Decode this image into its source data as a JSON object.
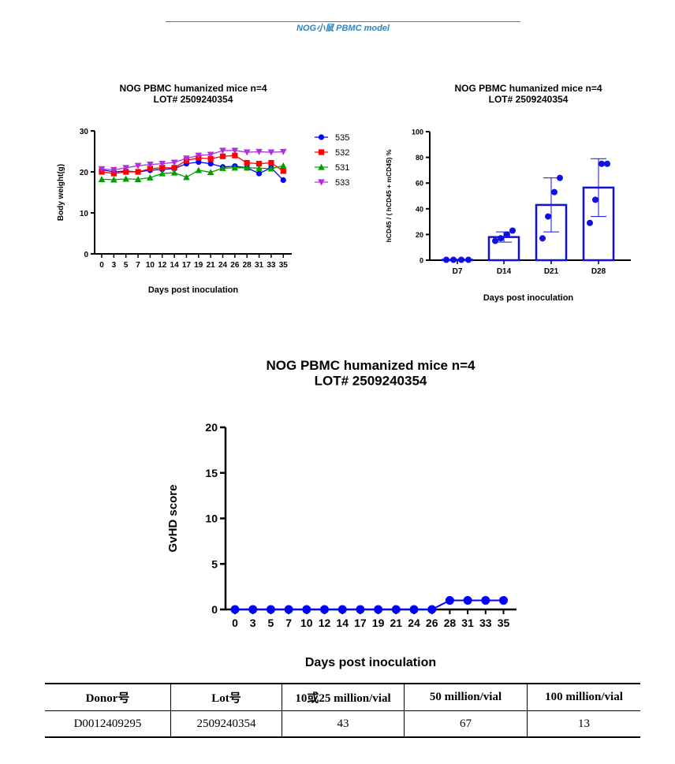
{
  "header": {
    "title": "NOG小鼠  PBMC model"
  },
  "chart_data": [
    {
      "type": "line",
      "title": "NOG PBMC humanized mice n=4",
      "subtitle": "LOT# 2509240354",
      "xlabel": "Days post inoculation",
      "ylabel": "Body weight(g)",
      "ylim": [
        0,
        30
      ],
      "yticks": [
        "0",
        "10",
        "20",
        "30"
      ],
      "categories": [
        "0",
        "3",
        "5",
        "7",
        "10",
        "12",
        "14",
        "17",
        "19",
        "21",
        "24",
        "26",
        "28",
        "31",
        "33",
        "35"
      ],
      "legend_position": "right",
      "series": [
        {
          "name": "535",
          "color": "#0000ff",
          "marker": "circle",
          "values": [
            20.5,
            20.0,
            20.2,
            20.0,
            20.4,
            20.6,
            20.8,
            22.0,
            22.4,
            22.0,
            21.2,
            21.4,
            21.0,
            19.6,
            21.0,
            18.0
          ]
        },
        {
          "name": "532",
          "color": "#ff0000",
          "marker": "square",
          "values": [
            20.0,
            19.6,
            20.0,
            20.0,
            20.8,
            21.0,
            21.0,
            22.8,
            23.4,
            23.2,
            23.8,
            24.0,
            22.2,
            22.0,
            22.2,
            20.2
          ]
        },
        {
          "name": "531",
          "color": "#00a000",
          "marker": "triangle-up",
          "values": [
            18.2,
            18.1,
            18.3,
            18.2,
            18.6,
            19.6,
            19.8,
            18.7,
            20.4,
            19.9,
            20.9,
            21.0,
            21.0,
            20.9,
            20.8,
            21.5
          ]
        },
        {
          "name": "533",
          "color": "#b030e0",
          "marker": "triangle-down",
          "values": [
            20.7,
            20.5,
            21.0,
            21.5,
            21.8,
            22.0,
            22.3,
            23.3,
            24.0,
            24.2,
            25.2,
            25.2,
            24.8,
            24.9,
            24.8,
            24.9
          ]
        }
      ]
    },
    {
      "type": "bar",
      "title": "NOG PBMC humanized mice n=4",
      "subtitle": "LOT# 2509240354",
      "xlabel": "Days post inoculation",
      "ylabel": "hCD45 / ( hCD45 + mCD45) %",
      "ylim": [
        0,
        100
      ],
      "yticks": [
        "0",
        "20",
        "40",
        "60",
        "80",
        "100"
      ],
      "categories": [
        "D7",
        "D14",
        "D21",
        "D28"
      ],
      "values": [
        0.3,
        18,
        43,
        56.5
      ],
      "error_low": [
        0.3,
        14,
        22,
        34
      ],
      "error_high": [
        0.3,
        22,
        64,
        79
      ],
      "points": [
        [
          0.3,
          0.3,
          0.3,
          0.3
        ],
        [
          15,
          17,
          20,
          23
        ],
        [
          17,
          34,
          53,
          64
        ],
        [
          29,
          47,
          75,
          75
        ]
      ],
      "color": "#1010e0"
    },
    {
      "type": "line",
      "title": "NOG PBMC humanized mice n=4",
      "subtitle": "LOT# 2509240354",
      "xlabel": "Days post inoculation",
      "ylabel": "GvHD score",
      "ylim": [
        0,
        20
      ],
      "yticks": [
        "0",
        "5",
        "10",
        "15",
        "20"
      ],
      "categories": [
        "0",
        "3",
        "5",
        "7",
        "10",
        "12",
        "14",
        "17",
        "19",
        "21",
        "24",
        "26",
        "28",
        "31",
        "33",
        "35"
      ],
      "series": [
        {
          "name": "GvHD",
          "color": "#0000ff",
          "marker": "circle",
          "values": [
            0,
            0,
            0,
            0,
            0,
            0,
            0,
            0,
            0,
            0,
            0,
            0,
            1,
            1,
            1,
            1
          ]
        }
      ]
    }
  ],
  "lot_table": {
    "headers": [
      "Donor号",
      "Lot号",
      "10或25 million/vial",
      "50 million/vial",
      "100 million/vial"
    ],
    "rows": [
      [
        "D0012409295",
        "2509240354",
        "43",
        "67",
        "13"
      ]
    ]
  }
}
